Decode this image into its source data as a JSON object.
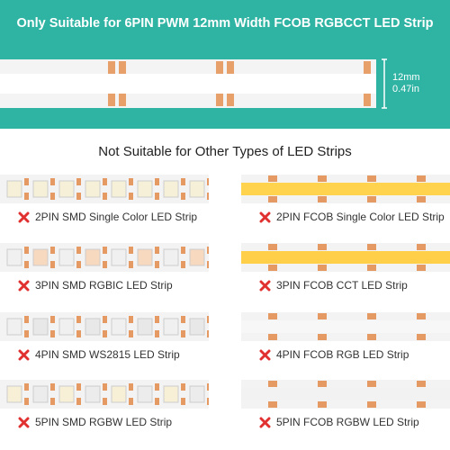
{
  "header": {
    "title": "Only Suitable for 6PIN PWM 12mm Width FCOB RGBCCT LED Strip",
    "width_label": [
      "12mm",
      "0.47in"
    ]
  },
  "subtitle": "Not Suitable for Other Types of LED Strips",
  "left_column": [
    "2PIN SMD Single Color LED Strip",
    "3PIN SMD RGBIC LED Strip",
    "4PIN SMD WS2815 LED Strip",
    "5PIN SMD RGBW LED Strip"
  ],
  "right_column": [
    "2PIN FCOB Single Color LED Strip",
    "3PIN FCOB CCT LED Strip",
    "4PIN FCOB RGB LED Strip",
    "5PIN FCOB RGBW LED Strip"
  ]
}
